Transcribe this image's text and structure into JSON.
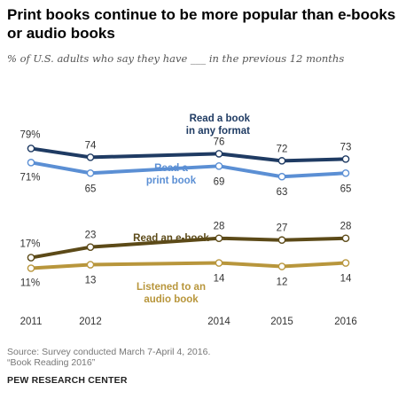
{
  "title": "Print books continue to be more popular than e-books or audio books",
  "subtitle": "% of U.S. adults who say they have ___ in the previous 12 months",
  "source_line1": "Source: Survey conducted March 7-April 4, 2016.",
  "source_line2": "“Book Reading 2016”",
  "brand": "PEW RESEARCH CENTER",
  "chart_data": {
    "type": "line",
    "x": [
      2011,
      2012,
      2014,
      2015,
      2016
    ],
    "ylim": [
      0,
      85
    ],
    "grid": false,
    "legend": "inline labels",
    "series": [
      {
        "name": "Read a book in any format",
        "values": [
          79,
          74,
          76,
          72,
          73
        ],
        "color": "#1f3b63",
        "label_lines": [
          "Read a book",
          "in any format"
        ]
      },
      {
        "name": "Read a print book",
        "values": [
          71,
          65,
          69,
          63,
          65
        ],
        "color": "#5b8fd4",
        "label_lines": [
          "Read a",
          "print book"
        ]
      },
      {
        "name": "Read an e-book",
        "values": [
          17,
          23,
          28,
          27,
          28
        ],
        "color": "#5c4a18",
        "label_lines": [
          "Read an e-book"
        ]
      },
      {
        "name": "Listened to an audio book",
        "values": [
          11,
          13,
          14,
          12,
          14
        ],
        "color": "#b8963c",
        "label_lines": [
          "Listened to an",
          "audio book"
        ]
      }
    ]
  }
}
